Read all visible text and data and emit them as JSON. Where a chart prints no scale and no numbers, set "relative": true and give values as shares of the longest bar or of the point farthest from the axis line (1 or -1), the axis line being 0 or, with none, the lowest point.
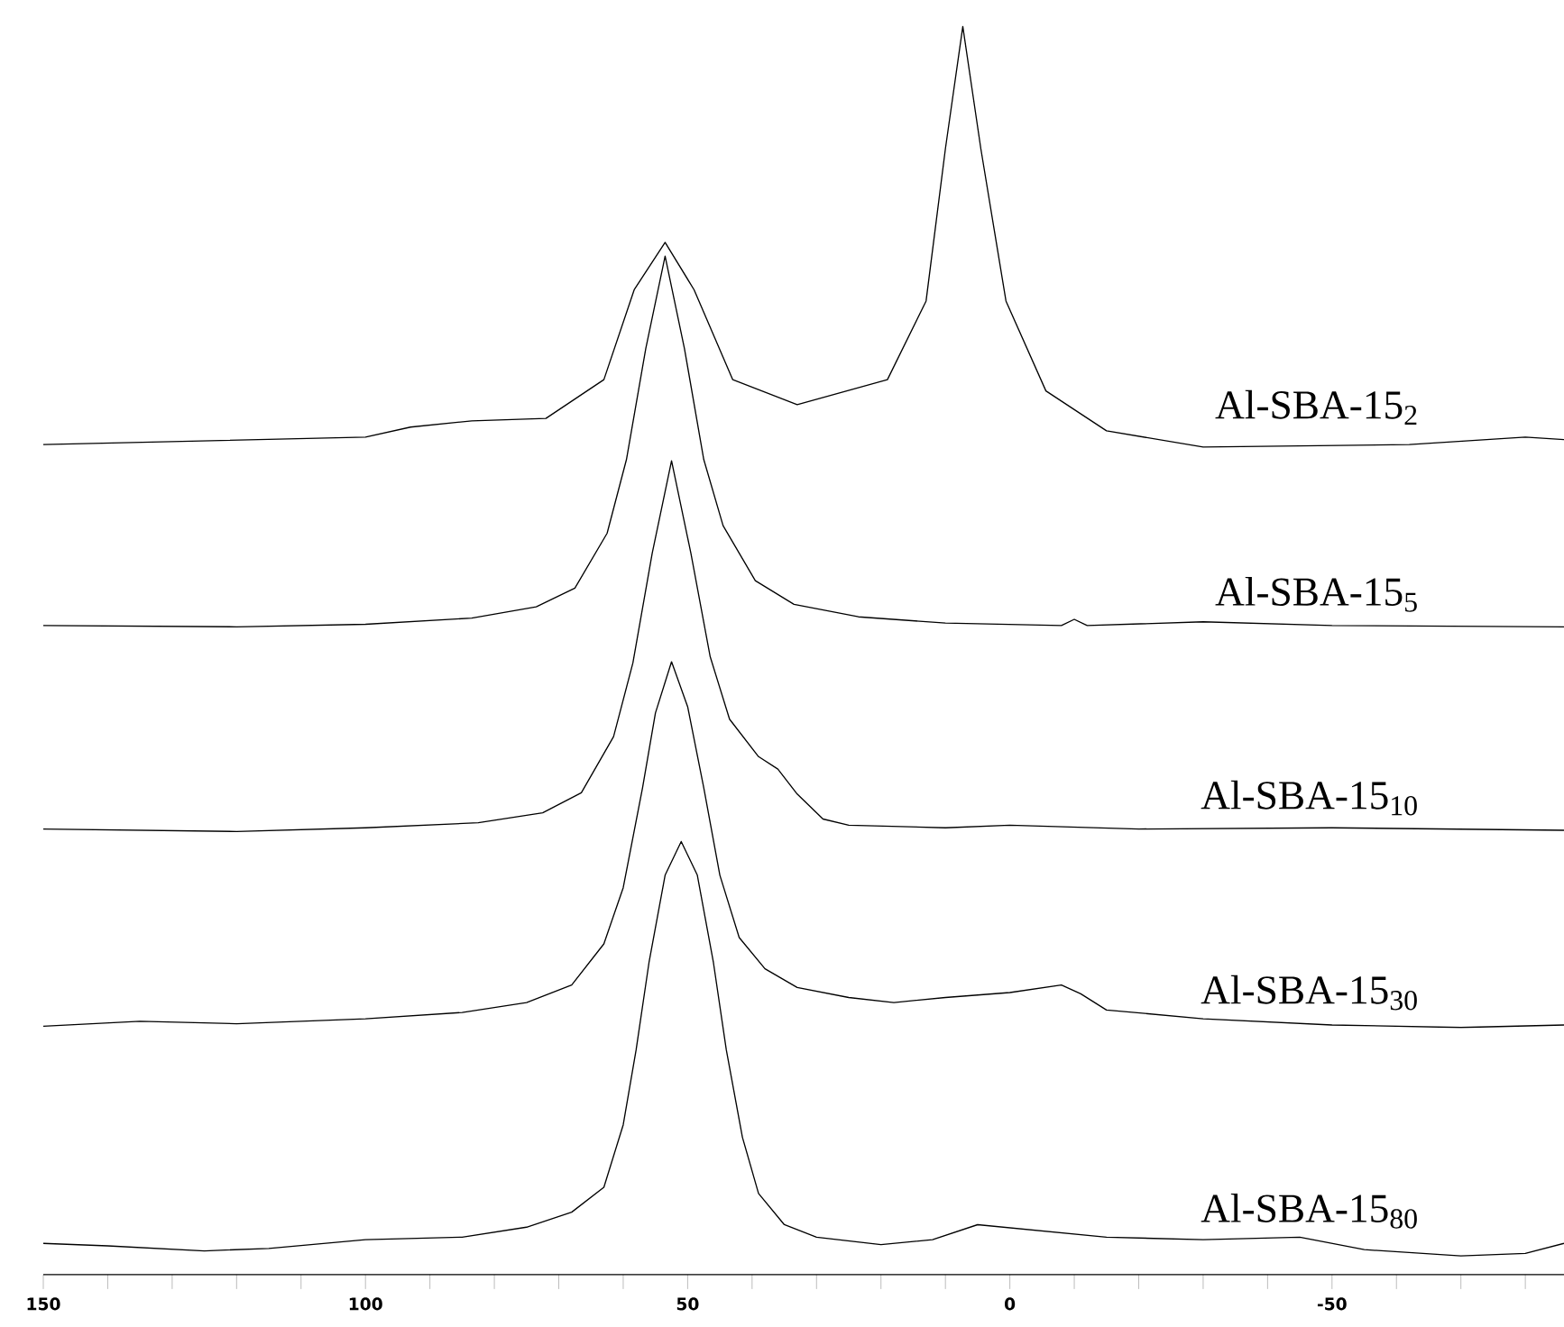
{
  "chart_data": {
    "type": "line",
    "relative": true,
    "xlim": [
      150,
      -86
    ],
    "xticks": [
      150,
      {
        "value": 140,
        "label": null
      },
      {
        "value": 130,
        "label": null
      },
      {
        "value": 120,
        "label": null
      },
      {
        "value": 110,
        "label": null
      },
      100,
      {
        "value": 90,
        "label": null
      },
      {
        "value": 80,
        "label": null
      },
      {
        "value": 70,
        "label": null
      },
      {
        "value": 60,
        "label": null
      },
      50,
      {
        "value": 40,
        "label": null
      },
      {
        "value": 30,
        "label": null
      },
      {
        "value": 20,
        "label": null
      },
      {
        "value": 10,
        "label": null
      },
      0,
      {
        "value": -10,
        "label": null
      },
      {
        "value": -20,
        "label": null
      },
      {
        "value": -30,
        "label": null
      },
      {
        "value": -40,
        "label": null
      },
      -50,
      {
        "value": -60,
        "label": null
      },
      {
        "value": -70,
        "label": null
      },
      {
        "value": -80,
        "label": null
      }
    ],
    "series": [
      {
        "name": "Al-SBA-15$_{2}$",
        "color": "#000000",
        "x": [
          150,
          100,
          93,
          83.5,
          72,
          63,
          58.3,
          53.5,
          49,
          43,
          33,
          19,
          13,
          10,
          7.3,
          4.5,
          0.6,
          -5.6,
          -15,
          -30,
          -62,
          -80,
          -86
        ],
        "values": [
          0.665,
          0.671,
          0.679,
          0.684,
          0.686,
          0.717,
          0.789,
          0.827,
          0.789,
          0.717,
          0.697,
          0.717,
          0.78,
          0.902,
          1.0,
          0.902,
          0.78,
          0.708,
          0.676,
          0.663,
          0.665,
          0.671,
          0.669
        ]
      },
      {
        "name": "Al-SBA-15$_{5}$",
        "color": "#000000",
        "x": [
          150,
          120,
          100,
          83.5,
          73.5,
          67.5,
          62.5,
          59.5,
          56.5,
          53.5,
          50.5,
          47.5,
          44.5,
          39.5,
          33.5,
          23.5,
          10,
          -8,
          -10,
          -12,
          -30,
          -50,
          -86
        ],
        "values": [
          0.52,
          0.519,
          0.521,
          0.526,
          0.535,
          0.55,
          0.594,
          0.653,
          0.742,
          0.816,
          0.742,
          0.653,
          0.6,
          0.556,
          0.537,
          0.527,
          0.522,
          0.52,
          0.525,
          0.52,
          0.523,
          0.52,
          0.519
        ]
      },
      {
        "name": "Al-SBA-15$_{10}$",
        "color": "#000000",
        "x": [
          150,
          120,
          100,
          82.5,
          72.5,
          66.5,
          61.5,
          58.5,
          55.5,
          52.5,
          49.5,
          46.5,
          43.5,
          39,
          36,
          33,
          29,
          25,
          10,
          0,
          -20,
          -50,
          -86
        ],
        "values": [
          0.357,
          0.355,
          0.358,
          0.362,
          0.37,
          0.386,
          0.431,
          0.49,
          0.578,
          0.652,
          0.578,
          0.495,
          0.445,
          0.415,
          0.405,
          0.385,
          0.365,
          0.36,
          0.358,
          0.36,
          0.357,
          0.358,
          0.356
        ]
      },
      {
        "name": "Al-SBA-15$_{30}$",
        "color": "#000000",
        "x": [
          150,
          135,
          120,
          100,
          85,
          75,
          68,
          63,
          60,
          57,
          55,
          52.5,
          50,
          47.5,
          45,
          42,
          38,
          33,
          25,
          18,
          10,
          0,
          -8,
          -11,
          -15,
          -30,
          -50,
          -70,
          -86
        ],
        "values": [
          0.199,
          0.203,
          0.201,
          0.205,
          0.21,
          0.218,
          0.232,
          0.265,
          0.31,
          0.39,
          0.45,
          0.491,
          0.455,
          0.39,
          0.32,
          0.27,
          0.245,
          0.23,
          0.222,
          0.218,
          0.222,
          0.226,
          0.232,
          0.225,
          0.212,
          0.205,
          0.2,
          0.198,
          0.2
        ]
      },
      {
        "name": "Al-SBA-15$_{80}$",
        "color": "#000000",
        "x": [
          150,
          140,
          125,
          115,
          100,
          85,
          75,
          68,
          63,
          60,
          58,
          56,
          53.5,
          51,
          48.5,
          46,
          44,
          41.5,
          39,
          35,
          30,
          20,
          12,
          5,
          -5,
          -15,
          -30,
          -45,
          -55,
          -70,
          -80,
          -86
        ],
        "values": [
          0.025,
          0.023,
          0.019,
          0.021,
          0.028,
          0.03,
          0.038,
          0.05,
          0.07,
          0.12,
          0.18,
          0.25,
          0.32,
          0.347,
          0.32,
          0.25,
          0.18,
          0.11,
          0.065,
          0.04,
          0.03,
          0.024,
          0.028,
          0.04,
          0.035,
          0.03,
          0.028,
          0.03,
          0.02,
          0.015,
          0.017,
          0.025
        ]
      }
    ]
  }
}
